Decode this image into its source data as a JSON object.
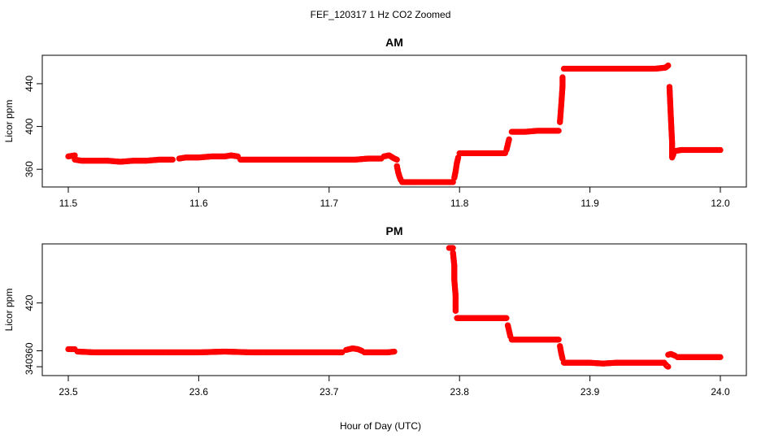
{
  "figure_title": "FEF_120317  1 Hz CO2 Zoomed",
  "xlabel": "Hour of Day (UTC)",
  "chart_data": [
    {
      "type": "scatter",
      "title": "AM",
      "xlabel": "",
      "ylabel": "Licor ppm",
      "xlim": [
        11.5,
        12.0
      ],
      "ylim": [
        348,
        462
      ],
      "xticks": [
        "11.5",
        "11.6",
        "11.7",
        "11.8",
        "11.9",
        "12.0"
      ],
      "yticks": [
        "360",
        "400",
        "440"
      ],
      "marker_color": "#ff0000",
      "series": [
        {
          "segments": [
            {
              "x": [
                11.5,
                11.505
              ],
              "y": [
                372,
                373
              ]
            },
            {
              "x": [
                11.505,
                11.51,
                11.52,
                11.53,
                11.54,
                11.55,
                11.56,
                11.57,
                11.58
              ],
              "y": [
                369,
                368,
                368,
                368,
                367,
                368,
                368,
                369,
                369
              ]
            },
            {
              "x": [
                11.585,
                11.59,
                11.6,
                11.61,
                11.62,
                11.625,
                11.63
              ],
              "y": [
                370,
                371,
                371,
                372,
                372,
                373,
                372
              ]
            },
            {
              "x": [
                11.632,
                11.64,
                11.65,
                11.66,
                11.67,
                11.68,
                11.69,
                11.7,
                11.71,
                11.72,
                11.73,
                11.74
              ],
              "y": [
                369,
                369,
                369,
                369,
                369,
                369,
                369,
                369,
                369,
                369,
                370,
                370
              ]
            },
            {
              "x": [
                11.742,
                11.746,
                11.75,
                11.752
              ],
              "y": [
                372,
                373,
                370,
                369
              ]
            },
            {
              "x": [
                11.752,
                11.753,
                11.754,
                11.755
              ],
              "y": [
                363,
                357,
                353,
                350
              ]
            },
            {
              "x": [
                11.756,
                11.76,
                11.77,
                11.78,
                11.79,
                11.795
              ],
              "y": [
                348,
                348,
                348,
                348,
                348,
                348
              ]
            },
            {
              "x": [
                11.796,
                11.797,
                11.798,
                11.799
              ],
              "y": [
                352,
                358,
                366,
                371
              ]
            },
            {
              "x": [
                11.8,
                11.81,
                11.82,
                11.83,
                11.835
              ],
              "y": [
                375,
                375,
                375,
                375,
                375
              ]
            },
            {
              "x": [
                11.836,
                11.837,
                11.838
              ],
              "y": [
                378,
                383,
                388
              ]
            },
            {
              "x": [
                11.84,
                11.85,
                11.86,
                11.87,
                11.876
              ],
              "y": [
                395,
                395,
                396,
                396,
                396
              ]
            },
            {
              "x": [
                11.877,
                11.878,
                11.879,
                11.879
              ],
              "y": [
                404,
                420,
                438,
                446
              ]
            },
            {
              "x": [
                11.88,
                11.89,
                11.9,
                11.91,
                11.92,
                11.93,
                11.94,
                11.95,
                11.958,
                11.96
              ],
              "y": [
                454,
                454,
                454,
                454,
                454,
                454,
                454,
                454,
                455,
                457
              ]
            },
            {
              "x": [
                11.961,
                11.962,
                11.963,
                11.963,
                11.964
              ],
              "y": [
                437,
                410,
                385,
                371,
                374
              ]
            },
            {
              "x": [
                11.965,
                11.97,
                11.98,
                11.99,
                12.0
              ],
              "y": [
                377,
                378,
                378,
                378,
                378
              ]
            }
          ]
        }
      ]
    },
    {
      "type": "scatter",
      "title": "PM",
      "xlabel": "Hour of Day (UTC)",
      "ylabel": "Licor ppm",
      "xlim": [
        23.5,
        24.0
      ],
      "ylim": [
        335,
        488
      ],
      "xticks": [
        "23.5",
        "23.6",
        "23.7",
        "23.8",
        "23.9",
        "24.0"
      ],
      "yticks": [
        "340",
        "360",
        "420"
      ],
      "marker_color": "#ff0000",
      "series": [
        {
          "segments": [
            {
              "x": [
                23.5,
                23.505
              ],
              "y": [
                362,
                362
              ]
            },
            {
              "x": [
                23.507,
                23.52,
                23.54,
                23.56,
                23.58,
                23.6,
                23.62,
                23.64,
                23.66,
                23.68,
                23.7,
                23.71
              ],
              "y": [
                359,
                358,
                358,
                358,
                358,
                358,
                359,
                358,
                358,
                358,
                358,
                358
              ]
            },
            {
              "x": [
                23.713,
                23.718,
                23.722,
                23.725
              ],
              "y": [
                361,
                363,
                362,
                360
              ]
            },
            {
              "x": [
                23.727,
                23.735,
                23.745,
                23.75
              ],
              "y": [
                358,
                358,
                358,
                359
              ]
            },
            {
              "x": [
                23.792,
                23.794,
                23.795
              ],
              "y": [
                489,
                489,
                489
              ]
            },
            {
              "x": [
                23.795,
                23.796,
                23.796,
                23.797,
                23.797
              ],
              "y": [
                483,
                467,
                449,
                429,
                410
              ]
            },
            {
              "x": [
                23.798,
                23.81,
                23.82,
                23.83,
                23.836
              ],
              "y": [
                401,
                401,
                401,
                401,
                401
              ]
            },
            {
              "x": [
                23.837,
                23.838,
                23.839
              ],
              "y": [
                392,
                385,
                378
              ]
            },
            {
              "x": [
                23.84,
                23.85,
                23.86,
                23.87,
                23.876
              ],
              "y": [
                374,
                374,
                374,
                374,
                374
              ]
            },
            {
              "x": [
                23.877,
                23.878,
                23.879
              ],
              "y": [
                366,
                357,
                350
              ]
            },
            {
              "x": [
                23.88,
                23.89,
                23.9,
                23.91,
                23.92,
                23.93,
                23.94,
                23.95,
                23.957
              ],
              "y": [
                345,
                345,
                345,
                344,
                345,
                345,
                345,
                345,
                345
              ]
            },
            {
              "x": [
                23.958,
                23.959,
                23.96
              ],
              "y": [
                343,
                341,
                340
              ]
            },
            {
              "x": [
                23.96,
                23.962,
                23.965
              ],
              "y": [
                355,
                356,
                354
              ]
            },
            {
              "x": [
                23.967,
                23.975,
                23.985,
                23.995,
                24.0
              ],
              "y": [
                352,
                352,
                352,
                352,
                352
              ]
            }
          ]
        }
      ]
    }
  ]
}
